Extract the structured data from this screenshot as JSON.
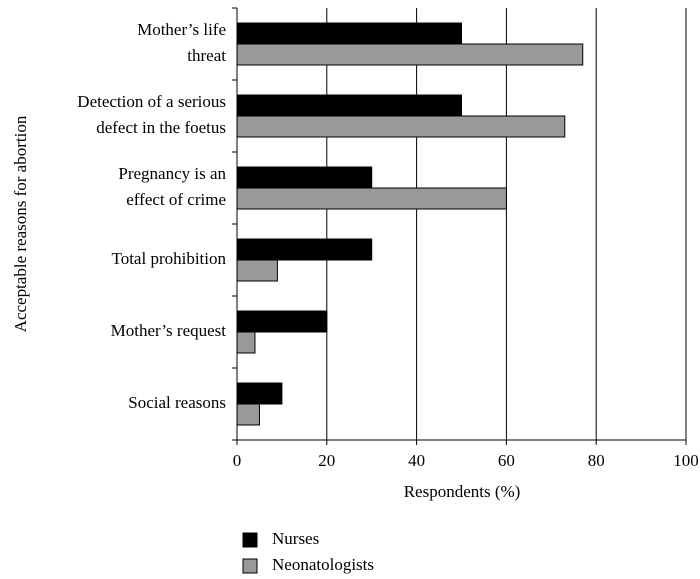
{
  "chart_data": {
    "type": "bar",
    "orientation": "horizontal",
    "x_label": "Respondents (%)",
    "y_label": "Acceptable reasons for abortion",
    "categories": [
      [
        "Mother’s life",
        "threat"
      ],
      [
        "Detection of a serious",
        "defect in the foetus"
      ],
      [
        "Pregnancy is an",
        "effect of crime"
      ],
      [
        "Total prohibition"
      ],
      [
        "Mother’s request"
      ],
      [
        "Social reasons"
      ]
    ],
    "series": [
      {
        "name": "Nurses",
        "color": "#000000",
        "values": [
          50,
          50,
          30,
          30,
          20,
          10
        ]
      },
      {
        "name": "Neonatologists",
        "color": "#999999",
        "values": [
          77,
          73,
          60,
          9,
          4,
          5
        ]
      }
    ],
    "xlim": [
      0,
      100
    ],
    "xticks": [
      0,
      20,
      40,
      60,
      80,
      100
    ],
    "grid": true
  }
}
